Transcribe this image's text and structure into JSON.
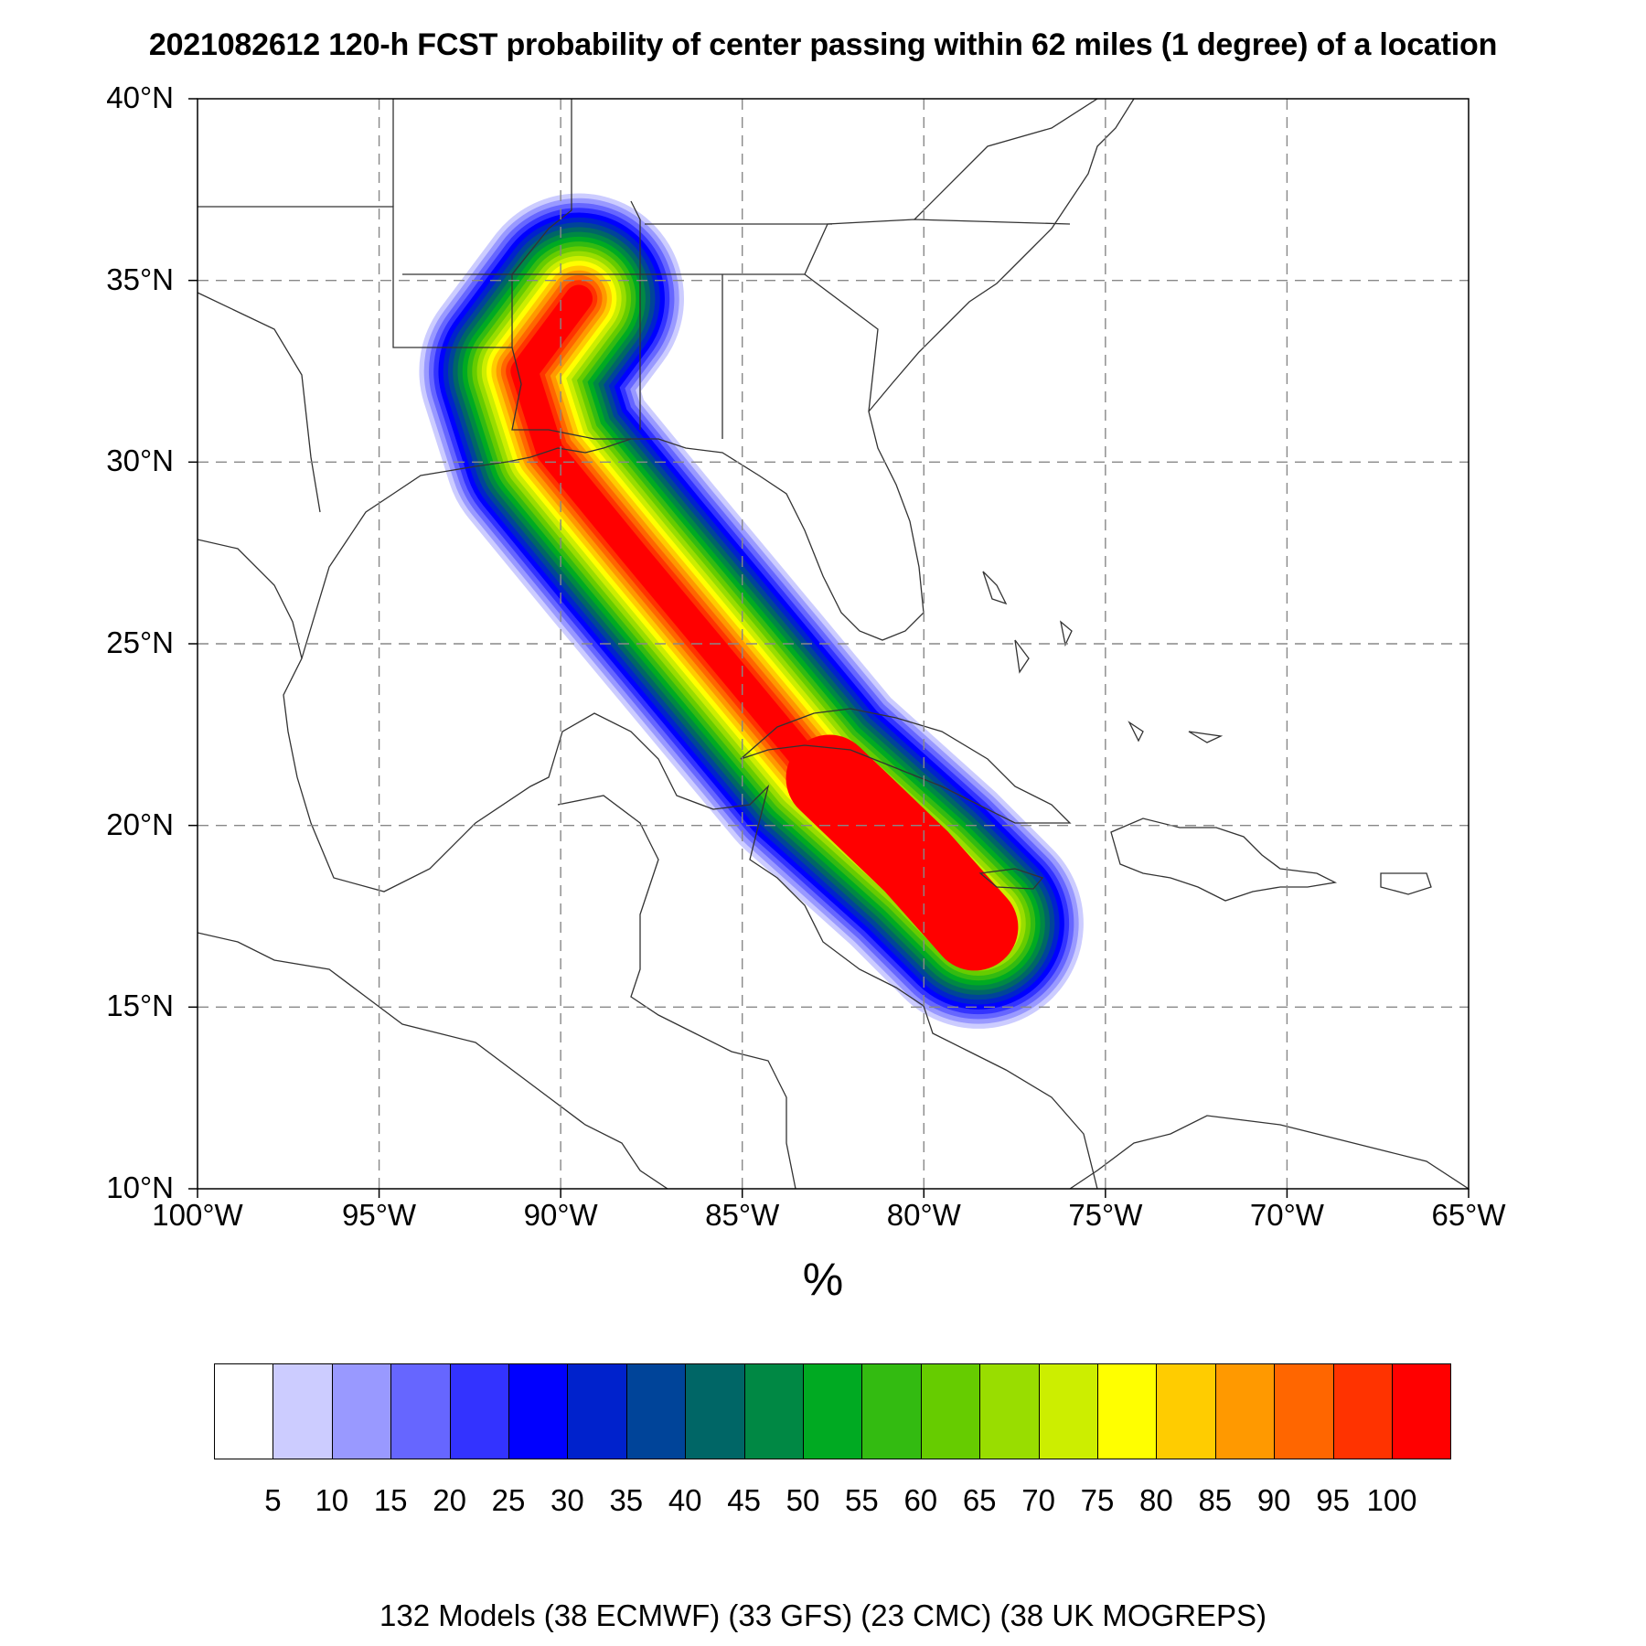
{
  "title": "2021082612 120-h FCST probability of center passing within 62 miles (1 degree) of a location",
  "map": {
    "lon_range": [
      -100,
      -65
    ],
    "lat_range": [
      10,
      40
    ],
    "lat_labels": [
      "40°N",
      "35°N",
      "30°N",
      "25°N",
      "20°N",
      "15°N",
      "10°N"
    ],
    "lon_labels": [
      "100°W",
      "95°W",
      "90°W",
      "85°W",
      "80°W",
      "75°W",
      "70°W",
      "65°W"
    ],
    "gridlines": "dashed",
    "gridline_lons": [
      -95,
      -90,
      -85,
      -80,
      -75,
      -70
    ],
    "gridline_lats": [
      15,
      20,
      25,
      30,
      35
    ],
    "probability_swath": {
      "description_levels_percent": [
        5,
        10,
        15,
        20,
        25,
        30,
        35,
        40,
        45,
        50,
        55,
        60,
        65,
        70,
        75,
        80,
        85,
        90,
        95,
        100
      ],
      "track_axis_lonlat": [
        [
          -78.5,
          17.3
        ],
        [
          -80,
          18.8
        ],
        [
          -83,
          21.5
        ],
        [
          -85.5,
          24.5
        ],
        [
          -88,
          27.5
        ],
        [
          -90.3,
          30.3
        ],
        [
          -91,
          32.5
        ],
        [
          -89.5,
          34.5
        ]
      ],
      "peak_region": "red (>=95%) near Jamaica/Cayman Islands, 17°N–21°N"
    }
  },
  "colorbar": {
    "units_label": "%",
    "colors": [
      "#ffffff",
      "#ccccff",
      "#9999ff",
      "#6666ff",
      "#3333ff",
      "#0000ff",
      "#0022cc",
      "#004499",
      "#006666",
      "#008844",
      "#00aa22",
      "#33bb11",
      "#66cc00",
      "#99dd00",
      "#ccee00",
      "#ffff00",
      "#ffcc00",
      "#ff9900",
      "#ff6600",
      "#ff3300",
      "#ff0000"
    ],
    "labels": [
      "5",
      "10",
      "15",
      "20",
      "25",
      "30",
      "35",
      "40",
      "45",
      "50",
      "55",
      "60",
      "65",
      "70",
      "75",
      "80",
      "85",
      "90",
      "95",
      "100"
    ]
  },
  "footer": "132 Models (38 ECMWF) (33 GFS) (23 CMC) (38 UK MOGREPS)"
}
